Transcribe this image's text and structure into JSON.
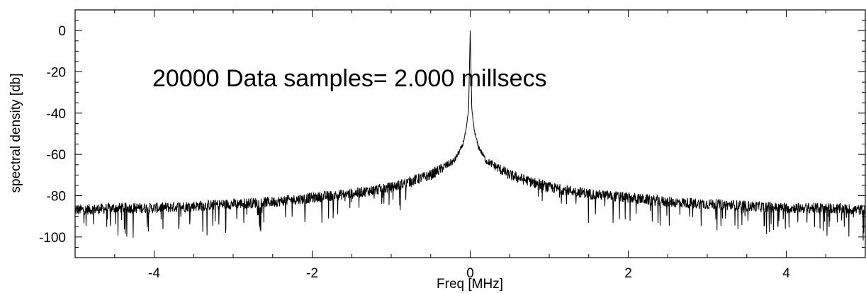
{
  "chart_data": {
    "type": "line",
    "title": "",
    "xlabel": "Freq [MHz]",
    "ylabel": "spectral density [db]",
    "xlim": [
      -5,
      5
    ],
    "ylim": [
      -110,
      10
    ],
    "xticks": [
      -4,
      -2,
      0,
      2,
      4
    ],
    "xtick_labels": [
      "-4",
      "-2",
      "0",
      "2",
      "4"
    ],
    "yticks": [
      0,
      -20,
      -40,
      -60,
      -80,
      -100
    ],
    "ytick_labels": [
      "0",
      "-20",
      "-40",
      "-60",
      "-80",
      "-100"
    ],
    "annotation": "20000 Data samples= 2.000 millsecs",
    "grid": false,
    "color": "#000000",
    "series": [
      {
        "x": [
          -5,
          -4.5,
          -4,
          -3.5,
          -3,
          -2.5,
          -2,
          -1.5,
          -1,
          -0.5,
          -0.2,
          -0.1,
          -0.05,
          -0.02,
          0,
          0.02,
          0.05,
          0.1,
          0.2,
          0.5,
          1,
          1.5,
          2,
          2.5,
          3,
          3.5,
          4,
          4.5,
          5
        ],
        "values": [
          -87,
          -86,
          -86,
          -85,
          -84,
          -83,
          -81,
          -79,
          -76,
          -70,
          -63,
          -56,
          -48,
          -38,
          0,
          -38,
          -48,
          -56,
          -63,
          -70,
          -76,
          -79,
          -81,
          -83,
          -84,
          -85,
          -86,
          -86,
          -87
        ]
      }
    ]
  }
}
